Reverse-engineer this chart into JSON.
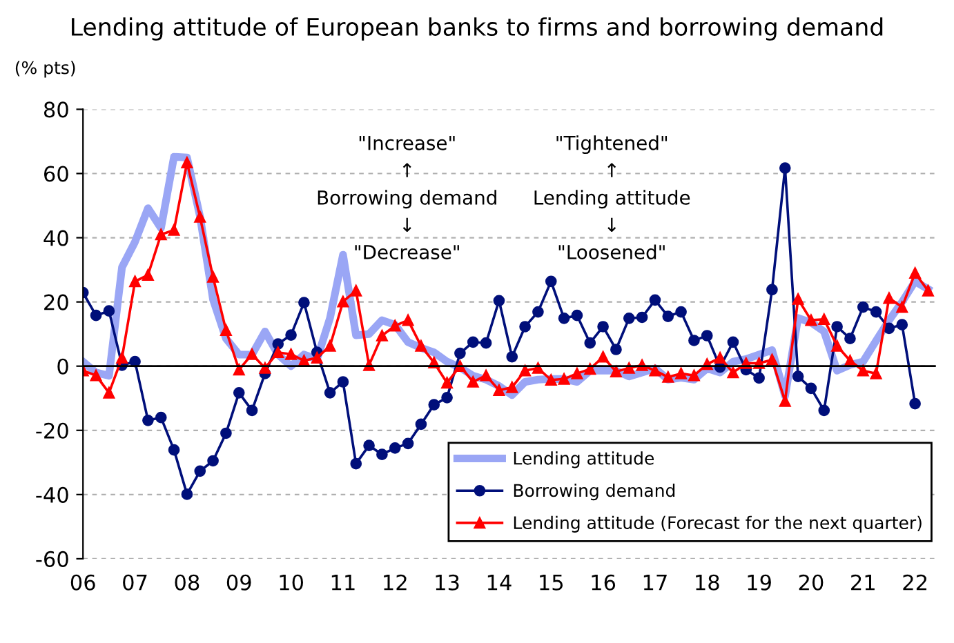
{
  "chart_data": {
    "type": "line",
    "title": "Lending attitude of European banks to firms and borrowing demand",
    "ylabel": "(% pts)",
    "annotations": [
      "\"Increase\"\n↑\nBorrowing demand\n↓\n\"Decrease\"",
      "\"Tightened\"\n↑\nLending attitude\n↓\n\"Loosened\""
    ],
    "x": [
      2006,
      2006.25,
      2006.5,
      2006.75,
      2007,
      2007.25,
      2007.5,
      2007.75,
      2008,
      2008.25,
      2008.5,
      2008.75,
      2009,
      2009.25,
      2009.5,
      2009.75,
      2010,
      2010.25,
      2010.5,
      2010.75,
      2011,
      2011.25,
      2011.5,
      2011.75,
      2012,
      2012.25,
      2012.5,
      2012.75,
      2013,
      2013.25,
      2013.5,
      2013.75,
      2014,
      2014.25,
      2014.5,
      2014.75,
      2015,
      2015.25,
      2015.5,
      2015.75,
      2016,
      2016.25,
      2016.5,
      2016.75,
      2017,
      2017.25,
      2017.5,
      2017.75,
      2018,
      2018.25,
      2018.5,
      2018.75,
      2019,
      2019.25,
      2019.5,
      2019.75,
      2020,
      2020.25,
      2020.5,
      2020.75,
      2021,
      2021.25,
      2021.5,
      2021.75,
      2022,
      2022.25
    ],
    "xlim": [
      2006,
      2022.4
    ],
    "xticks": [
      {
        "value": 2006,
        "label": "06"
      },
      {
        "value": 2007,
        "label": "07"
      },
      {
        "value": 2008,
        "label": "08"
      },
      {
        "value": 2009,
        "label": "09"
      },
      {
        "value": 2010,
        "label": "10"
      },
      {
        "value": 2011,
        "label": "11"
      },
      {
        "value": 2012,
        "label": "12"
      },
      {
        "value": 2013,
        "label": "13"
      },
      {
        "value": 2014,
        "label": "14"
      },
      {
        "value": 2015,
        "label": "15"
      },
      {
        "value": 2016,
        "label": "16"
      },
      {
        "value": 2017,
        "label": "17"
      },
      {
        "value": 2018,
        "label": "18"
      },
      {
        "value": 2019,
        "label": "19"
      },
      {
        "value": 2020,
        "label": "20"
      },
      {
        "value": 2021,
        "label": "21"
      },
      {
        "value": 2022,
        "label": "22"
      }
    ],
    "ylim": [
      -60,
      80
    ],
    "yticks": [
      -60,
      -40,
      -20,
      0,
      20,
      40,
      60,
      80
    ],
    "grid": "y",
    "legend": "lower right",
    "series": [
      {
        "name": "Lending attitude",
        "color": "#9aa6f5",
        "marker": "none",
        "values": [
          1.4,
          -2,
          -3,
          30.8,
          38.7,
          49.2,
          43,
          65.2,
          65,
          46.6,
          20.8,
          8.6,
          3.6,
          3.6,
          10.8,
          3.6,
          0,
          3.6,
          2.2,
          15,
          34.7,
          9.6,
          10,
          14.3,
          12.9,
          7.5,
          5.7,
          4.3,
          1.4,
          -0.4,
          -3,
          -4.2,
          -6.2,
          -9,
          -4.9,
          -4.2,
          -4,
          -4,
          -4.9,
          -1.4,
          -1.4,
          -1.4,
          -3.2,
          -2,
          -0.7,
          -4.2,
          -3.6,
          -4.2,
          -0.7,
          -2,
          1.4,
          2.2,
          3.6,
          5,
          -9.3,
          15,
          13.6,
          10.8,
          -1.4,
          0.4,
          1.4,
          7.9,
          14.3,
          20,
          26.4,
          24
        ]
      },
      {
        "name": "Borrowing demand",
        "color": "#000f7a",
        "marker": "circle",
        "x": [
          2006,
          2006.25,
          2006.5,
          2006.75,
          2007,
          2007.25,
          2007.5,
          2007.75,
          2008,
          2008.25,
          2008.5,
          2008.75,
          2009,
          2009.25,
          2009.5,
          2009.75,
          2010,
          2010.25,
          2010.5,
          2010.75,
          2011,
          2011.25,
          2011.5,
          2011.75,
          2012,
          2012.25,
          2012.5,
          2012.75,
          2013,
          2013.25,
          2013.5,
          2013.75,
          2014,
          2014.25,
          2014.5,
          2014.75,
          2015,
          2015.25,
          2015.5,
          2015.75,
          2016,
          2016.25,
          2016.5,
          2016.75,
          2017,
          2017.25,
          2017.5,
          2017.75,
          2018,
          2018.25,
          2018.5,
          2018.75,
          2019,
          2019.25,
          2019.5,
          2019.75,
          2020,
          2020.25,
          2020.5,
          2020.75,
          2021,
          2021.25,
          2021.5,
          2021.75,
          2022
        ],
        "values": [
          22.9,
          15.8,
          17.2,
          0.3,
          1.4,
          -16.9,
          -16,
          -26.1,
          -39.9,
          -32.7,
          -29.5,
          -20.9,
          -8.3,
          -13.8,
          -2.3,
          6.9,
          9.7,
          19.8,
          4.3,
          -8.3,
          -4.9,
          -30.4,
          -24.7,
          -27.5,
          -25.5,
          -24.1,
          -18.1,
          -12.0,
          -9.8,
          4.0,
          7.5,
          7.2,
          20.4,
          2.9,
          12.3,
          16.9,
          26.4,
          14.9,
          15.8,
          7.2,
          12.3,
          5.2,
          14.9,
          15.2,
          20.6,
          15.5,
          16.9,
          8.0,
          9.5,
          -0.3,
          7.5,
          -1.1,
          -3.7,
          23.8,
          61.7,
          -3.2,
          -6.9,
          -13.8,
          12.3,
          8.6,
          18.4,
          16.9,
          11.8,
          12.9,
          -11.7
        ]
      },
      {
        "name": "Lending attitude (Forecast for the next quarter)",
        "color": "#ff0000",
        "marker": "triangle",
        "values": [
          -1.4,
          -2.9,
          -8.3,
          2.6,
          26.4,
          28.4,
          41.0,
          42.4,
          63.4,
          46.5,
          27.8,
          11.2,
          -1.1,
          3.7,
          -0.6,
          4.3,
          3.7,
          1.7,
          2.6,
          6.3,
          20.1,
          23.5,
          0.3,
          9.5,
          12.6,
          14.3,
          6.3,
          1.1,
          -5.2,
          0,
          -4.9,
          -2.9,
          -7.5,
          -6.6,
          -1.4,
          -0.6,
          -4.3,
          -4.0,
          -2.3,
          -0.9,
          2.9,
          -1.7,
          -0.6,
          0.3,
          -1.4,
          -3.4,
          -2.3,
          -2.9,
          0.6,
          2.6,
          -2.0,
          0.9,
          0.9,
          2.0,
          -10.9,
          20.9,
          14.3,
          14.6,
          6.3,
          1.7,
          -1.4,
          -2.3,
          21.2,
          18.4,
          29.0,
          23.5
        ]
      }
    ]
  }
}
